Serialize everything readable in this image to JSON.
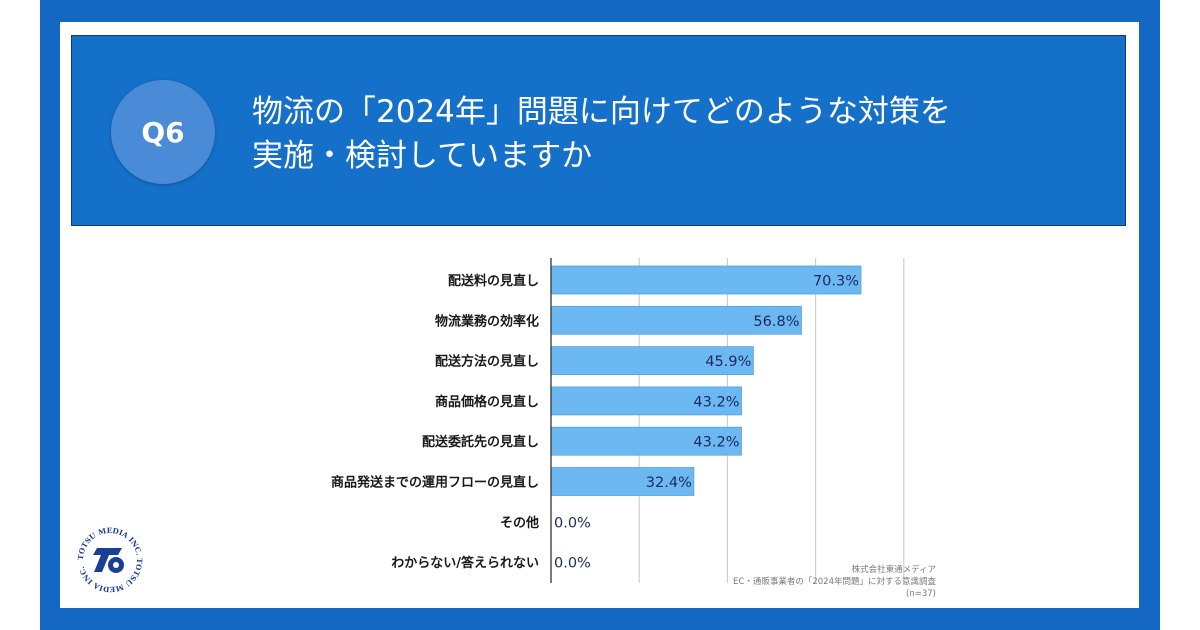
{
  "header": {
    "badge": "Q6",
    "title_line1": "物流の「2024年」問題に向けてどのような対策を",
    "title_line2": "実施・検討していますか"
  },
  "colors": {
    "frame": "#1468C4",
    "header": "#1470C8",
    "badge": "#4A8BD8",
    "bar": "#6CB8F2",
    "bar_border": "#5AA2DC",
    "value_text": "#1B2A5A",
    "gridline": "#cfcfcf",
    "axis": "#333333"
  },
  "chart_data": {
    "type": "bar",
    "orientation": "horizontal",
    "title": "物流の「2024年」問題に向けてどのような対策を実施・検討していますか",
    "categories": [
      "配送料の見直し",
      "物流業務の効率化",
      "配送方法の見直し",
      "商品価格の見直し",
      "配送委託先の見直し",
      "商品発送までの運用フローの見直し",
      "その他",
      "わからない/答えられない"
    ],
    "values": [
      70.3,
      56.8,
      45.9,
      43.2,
      43.2,
      32.4,
      0.0,
      0.0
    ],
    "value_labels": [
      "70.3%",
      "56.8%",
      "45.9%",
      "43.2%",
      "43.2%",
      "32.4%",
      "0.0%",
      "0.0%"
    ],
    "xlim": [
      0,
      80
    ],
    "gridlines": [
      20,
      40,
      60,
      80
    ],
    "grid": true,
    "xlabel": "",
    "ylabel": ""
  },
  "source": {
    "company": "株式会社東通メディア",
    "survey": "EC・通販事業者の「2024年問題」に対する意識調査",
    "sample": "(n=37)"
  },
  "logo": {
    "text": "TOTSU MEDIA INC. TOTSU MEDIA INC."
  }
}
